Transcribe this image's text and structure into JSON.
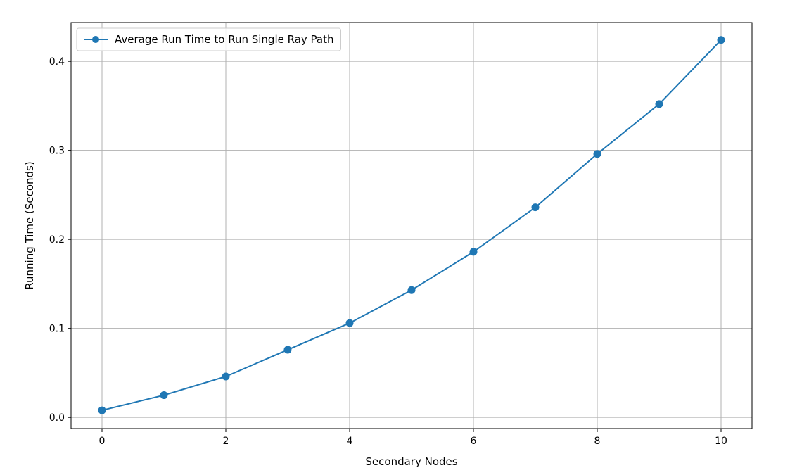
{
  "chart_data": {
    "type": "line",
    "title": "",
    "xlabel": "Secondary Nodes",
    "ylabel": "Running Time (Seconds)",
    "xlim": [
      -0.5,
      10.5
    ],
    "ylim": [
      -0.0125,
      0.4436
    ],
    "xticks": [
      0,
      2,
      4,
      6,
      8,
      10
    ],
    "xtick_labels": [
      "0",
      "2",
      "4",
      "6",
      "8",
      "10"
    ],
    "yticks": [
      0.0,
      0.1,
      0.2,
      0.3,
      0.4
    ],
    "ytick_labels": [
      "0.0",
      "0.1",
      "0.2",
      "0.3",
      "0.4"
    ],
    "grid": true,
    "legend_position": "top-left",
    "series": [
      {
        "name": "Average Run Time to Run Single Ray Path",
        "color": "#1f77b4",
        "marker": "circle",
        "x": [
          0,
          1,
          2,
          3,
          4,
          5,
          6,
          7,
          8,
          9,
          10
        ],
        "y": [
          0.008,
          0.025,
          0.046,
          0.076,
          0.106,
          0.143,
          0.186,
          0.236,
          0.296,
          0.352,
          0.424
        ]
      }
    ]
  }
}
